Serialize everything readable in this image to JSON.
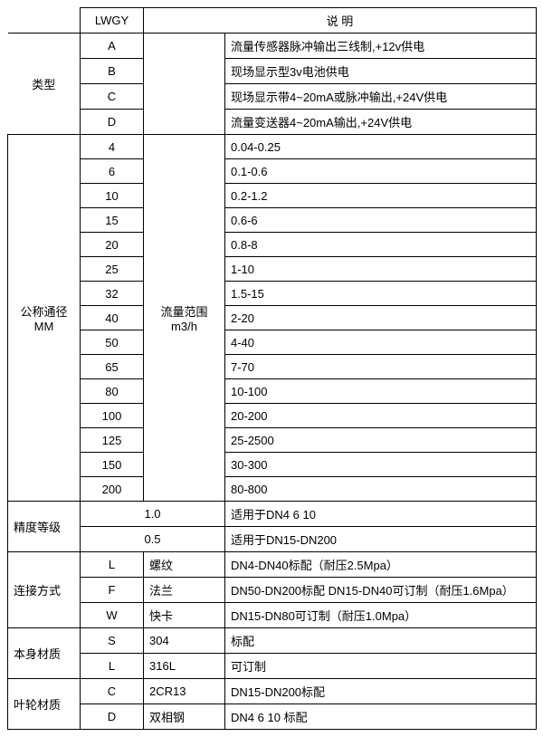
{
  "header": {
    "lwgy": "LWGY",
    "desc": "说        明"
  },
  "type": {
    "label": "类型",
    "rows": [
      {
        "code": "A",
        "desc": "流量传感器脉冲输出三线制,+12v供电"
      },
      {
        "code": "B",
        "desc": "现场显示型3v电池供电"
      },
      {
        "code": "C",
        "desc": "现场显示带4~20mA或脉冲输出,+24V供电"
      },
      {
        "code": "D",
        "desc": "流量变送器4~20mA输出,+24V供电"
      }
    ]
  },
  "dn": {
    "label_l1": "公称通径",
    "label_l2": "MM",
    "range_l1": "流量范围",
    "range_l2": "m3/h",
    "rows": [
      {
        "size": "4",
        "range": "0.04-0.25"
      },
      {
        "size": "6",
        "range": "0.1-0.6"
      },
      {
        "size": "10",
        "range": "0.2-1.2"
      },
      {
        "size": "15",
        "range": "0.6-6"
      },
      {
        "size": "20",
        "range": "0.8-8"
      },
      {
        "size": "25",
        "range": "1-10"
      },
      {
        "size": "32",
        "range": "1.5-15"
      },
      {
        "size": "40",
        "range": "2-20"
      },
      {
        "size": "50",
        "range": "4-40"
      },
      {
        "size": "65",
        "range": "7-70"
      },
      {
        "size": "80",
        "range": "10-100"
      },
      {
        "size": "100",
        "range": "20-200"
      },
      {
        "size": "125",
        "range": "25-2500"
      },
      {
        "size": "150",
        "range": "30-300"
      },
      {
        "size": "200",
        "range": "80-800"
      }
    ]
  },
  "accuracy": {
    "label": "精度等级",
    "rows": [
      {
        "val": "1.0",
        "desc": "适用于DN4  6  10"
      },
      {
        "val": "0.5",
        "desc": "适用于DN15-DN200"
      }
    ]
  },
  "conn": {
    "label": "连接方式",
    "rows": [
      {
        "code": "L",
        "name": "螺纹",
        "desc": "DN4-DN40标配（耐压2.5Mpa）"
      },
      {
        "code": "F",
        "name": "法兰",
        "desc": "DN50-DN200标配 DN15-DN40可订制（耐压1.6Mpa）"
      },
      {
        "code": "W",
        "name": "快卡",
        "desc": "DN15-DN80可订制（耐压1.0Mpa）"
      }
    ]
  },
  "body": {
    "label": "本身材质",
    "rows": [
      {
        "code": "S",
        "name": "304",
        "desc": "标配"
      },
      {
        "code": "L",
        "name": "316L",
        "desc": "可订制"
      }
    ]
  },
  "impeller": {
    "label": "叶轮材质",
    "rows": [
      {
        "code": "C",
        "name": "2CR13",
        "desc": "DN15-DN200标配"
      },
      {
        "code": "D",
        "name": "双相钢",
        "desc": "DN4 6 10 标配"
      }
    ]
  }
}
